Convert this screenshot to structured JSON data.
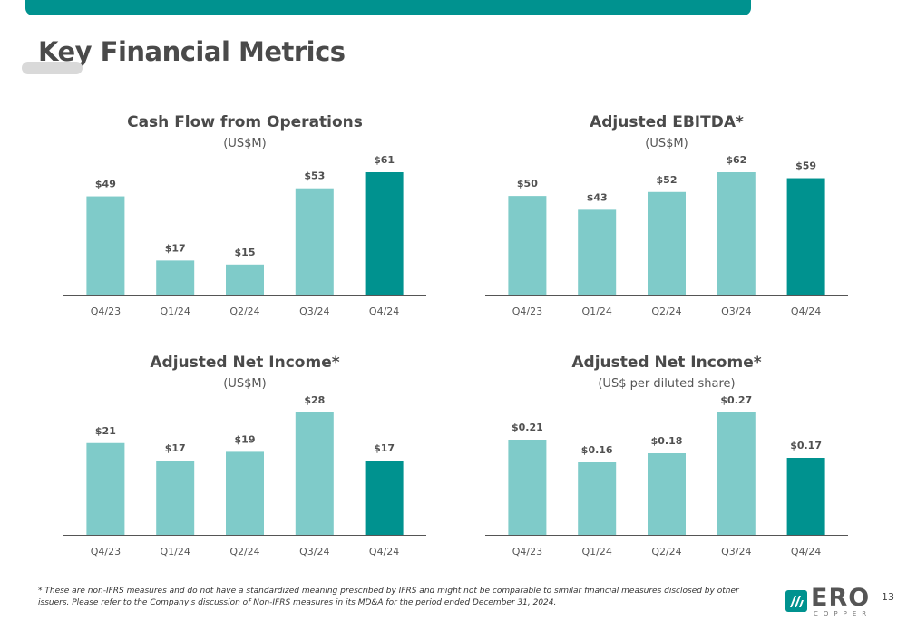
{
  "page": {
    "title": "Key Financial Metrics",
    "footnote": "* These are non-IFRS measures and do not have a standardized meaning prescribed by IFRS and might not be comparable to similar financial measures disclosed by other issuers. Please refer to the Company's discussion of Non-IFRS measures in its MD&A for the period ended December 31, 2024.",
    "page_number": "13",
    "logo": {
      "text": "ERO",
      "subtext": "COPPER",
      "icon": "ero-copper-logo-icon"
    }
  },
  "colors": {
    "accent": "#00928f",
    "bar_light": "#7fcbc9",
    "bar_highlight": "#00928f",
    "axis": "#555555"
  },
  "chart_data": [
    {
      "type": "bar",
      "title": "Cash Flow from Operations",
      "subtitle": "(US$M)",
      "categories": [
        "Q4/23",
        "Q1/24",
        "Q2/24",
        "Q3/24",
        "Q4/24"
      ],
      "values": [
        49,
        17,
        15,
        53,
        61
      ],
      "value_labels": [
        "$49",
        "$17",
        "$15",
        "$53",
        "$61"
      ],
      "ylim": [
        0,
        61
      ],
      "highlight_last": true,
      "grid": false
    },
    {
      "type": "bar",
      "title": "Adjusted EBITDA*",
      "subtitle": "(US$M)",
      "categories": [
        "Q4/23",
        "Q1/24",
        "Q2/24",
        "Q3/24",
        "Q4/24"
      ],
      "values": [
        50,
        43,
        52,
        62,
        59
      ],
      "value_labels": [
        "$50",
        "$43",
        "$52",
        "$62",
        "$59"
      ],
      "ylim": [
        0,
        62
      ],
      "highlight_last": true,
      "grid": false
    },
    {
      "type": "bar",
      "title": "Adjusted Net Income*",
      "subtitle": "(US$M)",
      "categories": [
        "Q4/23",
        "Q1/24",
        "Q2/24",
        "Q3/24",
        "Q4/24"
      ],
      "values": [
        21,
        17,
        19,
        28,
        17
      ],
      "value_labels": [
        "$21",
        "$17",
        "$19",
        "$28",
        "$17"
      ],
      "ylim": [
        0,
        28
      ],
      "highlight_last": true,
      "grid": false
    },
    {
      "type": "bar",
      "title": "Adjusted Net Income*",
      "subtitle": "(US$ per diluted share)",
      "categories": [
        "Q4/23",
        "Q1/24",
        "Q2/24",
        "Q3/24",
        "Q4/24"
      ],
      "values": [
        0.21,
        0.16,
        0.18,
        0.27,
        0.17
      ],
      "value_labels": [
        "$0.21",
        "$0.16",
        "$0.18",
        "$0.27",
        "$0.17"
      ],
      "ylim": [
        0,
        0.27
      ],
      "highlight_last": true,
      "grid": false
    }
  ]
}
